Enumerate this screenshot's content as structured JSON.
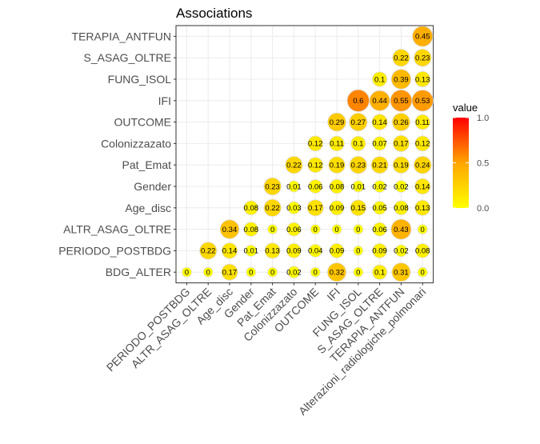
{
  "chart_data": {
    "type": "heatmap",
    "title": "Associations",
    "y_categories": [
      "BDG_ALTER",
      "PERIODO_POSTBDG",
      "ALTR_ASAG_OLTRE",
      "Age_disc",
      "Gender",
      "Pat_Emat",
      "Colonizzazato",
      "OUTCOME",
      "IFI",
      "FUNG_ISOL",
      "S_ASAG_OLTRE",
      "TERAPIA_ANTFUN"
    ],
    "x_categories": [
      "PERIODO_POSTBDG",
      "ALTR_ASAG_OLTRE",
      "Age_disc",
      "Gender",
      "Pat_Emat",
      "Colonizzazato",
      "OUTCOME",
      "IFI",
      "FUNG_ISOL",
      "S_ASAG_OLTRE",
      "TERAPIA_ANTFUN",
      "Alterazioni_radiologiche_polmonari"
    ],
    "values": [
      [
        0,
        0,
        0.17,
        0,
        0,
        0.02,
        0,
        0.32,
        0,
        0.1,
        0.31,
        0
      ],
      [
        0.22,
        0.14,
        0.01,
        0.13,
        0.09,
        0.04,
        0.09,
        0,
        0.09,
        0.02,
        0.08
      ],
      [
        0.34,
        0.08,
        0,
        0.06,
        0,
        0,
        0,
        0.06,
        0.43,
        0
      ],
      [
        0.08,
        0.22,
        0.03,
        0.17,
        0.09,
        0.15,
        0.05,
        0.08,
        0.13
      ],
      [
        0.23,
        0.01,
        0.06,
        0.08,
        0.01,
        0.02,
        0.02,
        0.14
      ],
      [
        0.22,
        0.12,
        0.19,
        0.23,
        0.21,
        0.19,
        0.24
      ],
      [
        0.12,
        0.11,
        0.1,
        0.07,
        0.17,
        0.12
      ],
      [
        0.29,
        0.27,
        0.14,
        0.26,
        0.11
      ],
      [
        0.6,
        0.44,
        0.55,
        0.53
      ],
      [
        0.1,
        0.39,
        0.13
      ],
      [
        0.22,
        0.23
      ],
      [
        0.45
      ]
    ],
    "labels": [
      [
        "0",
        "0",
        "0.17",
        "0",
        "0",
        "0.02",
        "0",
        "0.32",
        "0",
        "0.1",
        "0.31",
        "0"
      ],
      [
        "0.22",
        "0.14",
        "0.01",
        "0.13",
        "0.09",
        "0.04",
        "0.09",
        "0",
        "0.09",
        "0.02",
        "0.08"
      ],
      [
        "0.34",
        "0.08",
        "0",
        "0.06",
        "0",
        "0",
        "0",
        "0.06",
        "0.43",
        "0"
      ],
      [
        "0.08",
        "0.22",
        "0.03",
        "0.17",
        "0.09",
        "0.15",
        "0.05",
        "0.08",
        "0.13"
      ],
      [
        "0.23",
        "0.01",
        "0.06",
        "0.08",
        "0.01",
        "0.02",
        "0.02",
        "0.14"
      ],
      [
        "0.22",
        "0.12",
        "0.19",
        "0.23",
        "0.21",
        "0.19",
        "0.24"
      ],
      [
        "0.12",
        "0.11",
        "0.1",
        "0.07",
        "0.17",
        "0.12"
      ],
      [
        "0.29",
        "0.27",
        "0.14",
        "0.26",
        "0.11"
      ],
      [
        "0.6",
        "0.44",
        "0.55",
        "0.53"
      ],
      [
        "0.1",
        "0.39",
        "0.13"
      ],
      [
        "0.22",
        "0.23"
      ],
      [
        "0.45"
      ]
    ],
    "legend": {
      "title": "value",
      "ticks": [
        "0.0",
        "0.5",
        "1.0"
      ],
      "range": [
        0,
        1
      ],
      "colors": [
        "#FFFF00",
        "#FFA500",
        "#FF0000"
      ],
      "position": "right"
    },
    "grid": true,
    "panel_border": true
  }
}
